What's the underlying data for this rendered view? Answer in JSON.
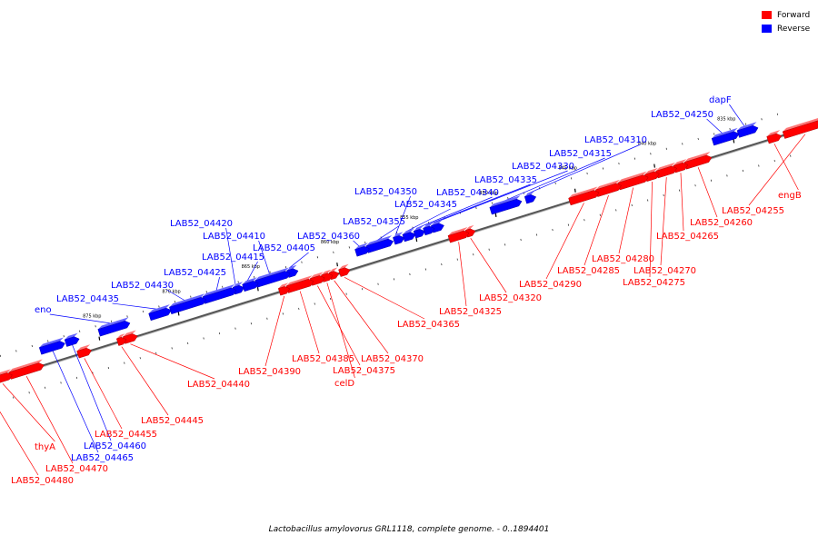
{
  "legend": {
    "forward": {
      "label": "Forward",
      "color": "#ff0000"
    },
    "reverse": {
      "label": "Reverse",
      "color": "#0000ff"
    }
  },
  "caption": "Lactobacillus amylovorus GRL1118, complete genome. - 0..1894401",
  "axis_ticks": [
    {
      "label": "835 kbp",
      "pos_kbp": 835
    },
    {
      "label": "840 kbp",
      "pos_kbp": 840
    },
    {
      "label": "845 kbp",
      "pos_kbp": 845
    },
    {
      "label": "850 kbp",
      "pos_kbp": 850
    },
    {
      "label": "855 kbp",
      "pos_kbp": 855
    },
    {
      "label": "860 kbp",
      "pos_kbp": 860
    },
    {
      "label": "865 kbp",
      "pos_kbp": 865
    },
    {
      "label": "870 kbp",
      "pos_kbp": 870
    },
    {
      "label": "875 kbp",
      "pos_kbp": 875
    }
  ],
  "genes_reverse": [
    {
      "label": "dapF",
      "start_kbp": 833.6,
      "end_kbp": 834.6
    },
    {
      "label": "LAB52_04250",
      "start_kbp": 834.8,
      "end_kbp": 836.2
    },
    {
      "label": "LAB52_04310",
      "start_kbp": 847.6,
      "end_kbp": 848.0
    },
    {
      "label": "LAB52_04315",
      "start_kbp": 848.5,
      "end_kbp": 850.2
    },
    {
      "label": "LAB52_04330",
      "start_kbp": 853.4,
      "end_kbp": 853.9
    },
    {
      "label": "LAB52_04335",
      "start_kbp": 854.0,
      "end_kbp": 854.4
    },
    {
      "label": "LAB52_04340",
      "start_kbp": 854.6,
      "end_kbp": 855.0
    },
    {
      "label": "LAB52_04345",
      "start_kbp": 855.2,
      "end_kbp": 855.7
    },
    {
      "label": "LAB52_04350",
      "start_kbp": 855.9,
      "end_kbp": 856.3
    },
    {
      "label": "LAB52_04355",
      "start_kbp": 856.6,
      "end_kbp": 858.0
    },
    {
      "label": "LAB52_04360",
      "start_kbp": 858.1,
      "end_kbp": 858.7
    },
    {
      "label": "LAB52_04405",
      "start_kbp": 862.6,
      "end_kbp": 863.0
    },
    {
      "label": "LAB52_04410",
      "start_kbp": 863.1,
      "end_kbp": 865.0
    },
    {
      "label": "LAB52_04415",
      "start_kbp": 865.1,
      "end_kbp": 865.8
    },
    {
      "label": "LAB52_04420",
      "start_kbp": 866.0,
      "end_kbp": 866.4
    },
    {
      "label": "LAB52_04425",
      "start_kbp": 866.5,
      "end_kbp": 868.3
    },
    {
      "label": "LAB52_04430",
      "start_kbp": 868.4,
      "end_kbp": 870.4
    },
    {
      "label": "LAB52_04435",
      "start_kbp": 870.6,
      "end_kbp": 871.7
    },
    {
      "label": "eno",
      "start_kbp": 873.2,
      "end_kbp": 874.9
    },
    {
      "label": "LAB52_04460",
      "start_kbp": 876.4,
      "end_kbp": 877.0
    },
    {
      "label": "LAB52_04465",
      "start_kbp": 877.3,
      "end_kbp": 878.6
    }
  ],
  "genes_forward": [
    {
      "label": "engB",
      "start_kbp": 832.4,
      "end_kbp": 833.0
    },
    {
      "label": "LAB52_04255",
      "start_kbp": 829.5,
      "end_kbp": 832.0
    },
    {
      "label": "LAB52_04260",
      "start_kbp": 836.8,
      "end_kbp": 838.2
    },
    {
      "label": "LAB52_04265",
      "start_kbp": 838.3,
      "end_kbp": 838.9
    },
    {
      "label": "LAB52_04270",
      "start_kbp": 839.0,
      "end_kbp": 840.0
    },
    {
      "label": "LAB52_04275",
      "start_kbp": 840.1,
      "end_kbp": 840.7
    },
    {
      "label": "LAB52_04280",
      "start_kbp": 840.8,
      "end_kbp": 842.4
    },
    {
      "label": "LAB52_04285",
      "start_kbp": 842.5,
      "end_kbp": 843.8
    },
    {
      "label": "LAB52_04290",
      "start_kbp": 843.9,
      "end_kbp": 845.5
    },
    {
      "label": "LAB52_04320",
      "start_kbp": 851.7,
      "end_kbp": 852.0
    },
    {
      "label": "LAB52_04325",
      "start_kbp": 852.1,
      "end_kbp": 853.1
    },
    {
      "label": "LAB52_04365",
      "start_kbp": 859.6,
      "end_kbp": 860.0
    },
    {
      "label": "LAB52_04370",
      "start_kbp": 860.3,
      "end_kbp": 860.6
    },
    {
      "label": "celD",
      "start_kbp": 860.7,
      "end_kbp": 861.1
    },
    {
      "label": "LAB52_04375",
      "start_kbp": 861.2,
      "end_kbp": 861.8
    },
    {
      "label": "LAB52_04385",
      "start_kbp": 861.9,
      "end_kbp": 863.3
    },
    {
      "label": "LAB52_04390",
      "start_kbp": 863.4,
      "end_kbp": 863.8
    },
    {
      "label": "LAB52_04440",
      "start_kbp": 873.0,
      "end_kbp": 873.6
    },
    {
      "label": "LAB52_04445",
      "start_kbp": 873.7,
      "end_kbp": 874.0
    },
    {
      "label": "LAB52_04455",
      "start_kbp": 875.9,
      "end_kbp": 876.5
    },
    {
      "label": "LAB52_04470",
      "start_kbp": 878.9,
      "end_kbp": 880.8
    },
    {
      "label": "thyA",
      "start_kbp": 880.9,
      "end_kbp": 881.8
    },
    {
      "label": "LAB52_04480",
      "start_kbp": 881.9,
      "end_kbp": 882.9
    }
  ]
}
